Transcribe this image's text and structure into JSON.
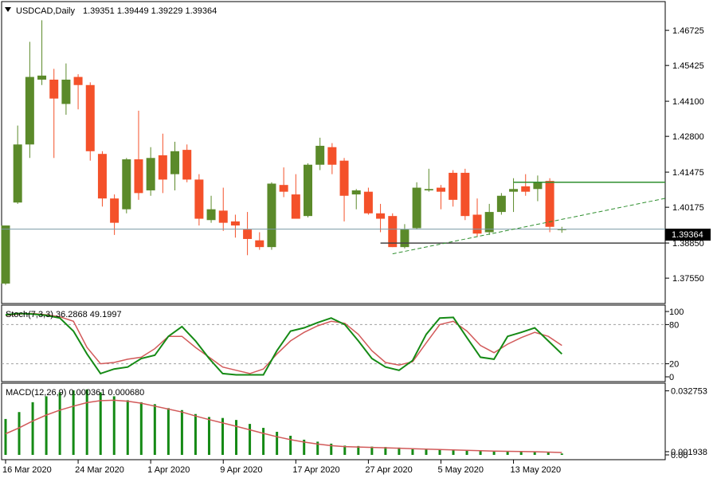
{
  "chart_data": {
    "type": "candlestick",
    "symbol_header": "USDCAD,Daily",
    "ohlc_header": "1.39351 1.39449 1.39229 1.39364",
    "current_price_label": "1.39364",
    "colors": {
      "bull": "#5b8a2a",
      "bear": "#f4512a",
      "stoch_main": "#158a15",
      "stoch_signal": "#d25a5a",
      "macd_hist": "#158a15",
      "macd_signal": "#d25a5a",
      "trendline": "#2f8f2f"
    },
    "price_axis": {
      "ylim": [
        1.3661,
        1.4779
      ],
      "ticks": [
        "1.46725",
        "1.45425",
        "1.44100",
        "1.42800",
        "1.41475",
        "1.40175",
        "1.38850",
        "1.37550"
      ]
    },
    "x_ticks": [
      {
        "i": 0,
        "label": "16 Mar 2020"
      },
      {
        "i": 6,
        "label": "24 Mar 2020"
      },
      {
        "i": 12,
        "label": "1 Apr 2020"
      },
      {
        "i": 18,
        "label": "9 Apr 2020"
      },
      {
        "i": 24,
        "label": "17 Apr 2020"
      },
      {
        "i": 30,
        "label": "27 Apr 2020"
      },
      {
        "i": 36,
        "label": "5 May 2020"
      },
      {
        "i": 42,
        "label": "13 May 2020"
      }
    ],
    "candles": [
      {
        "o": 1.3735,
        "h": 1.395,
        "l": 1.373,
        "c": 1.395
      },
      {
        "o": 1.4035,
        "h": 1.432,
        "l": 1.403,
        "c": 1.425
      },
      {
        "o": 1.425,
        "h": 1.463,
        "l": 1.42,
        "c": 1.45
      },
      {
        "o": 1.449,
        "h": 1.471,
        "l": 1.447,
        "c": 1.4505
      },
      {
        "o": 1.449,
        "h": 1.453,
        "l": 1.42,
        "c": 1.442
      },
      {
        "o": 1.44,
        "h": 1.455,
        "l": 1.436,
        "c": 1.449
      },
      {
        "o": 1.45,
        "h": 1.451,
        "l": 1.438,
        "c": 1.447
      },
      {
        "o": 1.447,
        "h": 1.448,
        "l": 1.419,
        "c": 1.4225
      },
      {
        "o": 1.4215,
        "h": 1.4225,
        "l": 1.402,
        "c": 1.405
      },
      {
        "o": 1.405,
        "h": 1.4065,
        "l": 1.3915,
        "c": 1.396
      },
      {
        "o": 1.401,
        "h": 1.42,
        "l": 1.3995,
        "c": 1.4195
      },
      {
        "o": 1.4195,
        "h": 1.4375,
        "l": 1.4045,
        "c": 1.407
      },
      {
        "o": 1.408,
        "h": 1.424,
        "l": 1.406,
        "c": 1.42
      },
      {
        "o": 1.421,
        "h": 1.429,
        "l": 1.407,
        "c": 1.412
      },
      {
        "o": 1.414,
        "h": 1.426,
        "l": 1.408,
        "c": 1.4225
      },
      {
        "o": 1.423,
        "h": 1.425,
        "l": 1.411,
        "c": 1.412
      },
      {
        "o": 1.412,
        "h": 1.414,
        "l": 1.395,
        "c": 1.3975
      },
      {
        "o": 1.397,
        "h": 1.406,
        "l": 1.396,
        "c": 1.401
      },
      {
        "o": 1.4005,
        "h": 1.409,
        "l": 1.393,
        "c": 1.396
      },
      {
        "o": 1.3965,
        "h": 1.399,
        "l": 1.3905,
        "c": 1.395
      },
      {
        "o": 1.3935,
        "h": 1.4,
        "l": 1.384,
        "c": 1.39
      },
      {
        "o": 1.3895,
        "h": 1.3925,
        "l": 1.386,
        "c": 1.387
      },
      {
        "o": 1.387,
        "h": 1.411,
        "l": 1.386,
        "c": 1.4105
      },
      {
        "o": 1.41,
        "h": 1.4165,
        "l": 1.4055,
        "c": 1.4075
      },
      {
        "o": 1.4065,
        "h": 1.414,
        "l": 1.398,
        "c": 1.3975
      },
      {
        "o": 1.3985,
        "h": 1.418,
        "l": 1.398,
        "c": 1.4175
      },
      {
        "o": 1.4175,
        "h": 1.4275,
        "l": 1.4155,
        "c": 1.4245
      },
      {
        "o": 1.424,
        "h": 1.4255,
        "l": 1.414,
        "c": 1.4175
      },
      {
        "o": 1.419,
        "h": 1.42,
        "l": 1.3965,
        "c": 1.406
      },
      {
        "o": 1.4065,
        "h": 1.4085,
        "l": 1.401,
        "c": 1.408
      },
      {
        "o": 1.4075,
        "h": 1.409,
        "l": 1.399,
        "c": 1.3995
      },
      {
        "o": 1.3995,
        "h": 1.403,
        "l": 1.3925,
        "c": 1.3975
      },
      {
        "o": 1.3985,
        "h": 1.3995,
        "l": 1.387,
        "c": 1.387
      },
      {
        "o": 1.387,
        "h": 1.3955,
        "l": 1.3865,
        "c": 1.3935
      },
      {
        "o": 1.394,
        "h": 1.411,
        "l": 1.3935,
        "c": 1.409
      },
      {
        "o": 1.408,
        "h": 1.416,
        "l": 1.4075,
        "c": 1.4085
      },
      {
        "o": 1.409,
        "h": 1.41,
        "l": 1.401,
        "c": 1.4075
      },
      {
        "o": 1.4145,
        "h": 1.4155,
        "l": 1.402,
        "c": 1.4045
      },
      {
        "o": 1.4145,
        "h": 1.416,
        "l": 1.397,
        "c": 1.3985
      },
      {
        "o": 1.399,
        "h": 1.405,
        "l": 1.391,
        "c": 1.392
      },
      {
        "o": 1.3925,
        "h": 1.403,
        "l": 1.3915,
        "c": 1.4
      },
      {
        "o": 1.4,
        "h": 1.407,
        "l": 1.399,
        "c": 1.406
      },
      {
        "o": 1.4075,
        "h": 1.4125,
        "l": 1.4,
        "c": 1.4085
      },
      {
        "o": 1.4095,
        "h": 1.414,
        "l": 1.406,
        "c": 1.4075
      },
      {
        "o": 1.4085,
        "h": 1.4135,
        "l": 1.404,
        "c": 1.411
      },
      {
        "o": 1.4115,
        "h": 1.4125,
        "l": 1.3925,
        "c": 1.3945
      },
      {
        "o": 1.3935,
        "h": 1.3945,
        "l": 1.3923,
        "c": 1.3936
      }
    ],
    "lines": {
      "resistance": {
        "i1": 42,
        "i2": 49,
        "price": 1.411
      },
      "support": {
        "i1": 31,
        "i2": 49,
        "price": 1.3885
      },
      "trend_from": {
        "i": 32,
        "price": 1.3845
      },
      "trend_to": {
        "i": 49,
        "price": 1.4
      },
      "current": 1.39364
    },
    "stochastic": {
      "label": "Stoch(7,3,3) 36.2868 49.1997",
      "ylim": [
        0,
        100
      ],
      "ticks": [
        "100",
        "80",
        "20",
        "0"
      ],
      "levels": [
        80,
        20
      ],
      "main": [
        95,
        97,
        96,
        94,
        90,
        70,
        35,
        5,
        12,
        15,
        28,
        33,
        62,
        77,
        55,
        28,
        5,
        3,
        3,
        3,
        40,
        70,
        75,
        83,
        90,
        80,
        55,
        28,
        15,
        10,
        25,
        65,
        90,
        91,
        60,
        30,
        27,
        62,
        68,
        75,
        55,
        35
      ],
      "signal": [
        94,
        96,
        97,
        95,
        92,
        85,
        45,
        20,
        22,
        27,
        30,
        43,
        62,
        62,
        45,
        30,
        15,
        10,
        5,
        12,
        35,
        55,
        68,
        78,
        85,
        82,
        65,
        40,
        22,
        18,
        23,
        52,
        80,
        85,
        70,
        48,
        37,
        50,
        60,
        68,
        62,
        48
      ]
    },
    "macd": {
      "label": "MACD(12,26,9) 0.000361 0.000680",
      "ylim": [
        0.0003,
        0.0334
      ],
      "ticks": [
        "0.032753",
        "0.001938",
        "0.00"
      ],
      "hist": [
        0.0185,
        0.022,
        0.027,
        0.03,
        0.032,
        0.033,
        0.0335,
        0.032,
        0.03,
        0.028,
        0.027,
        0.026,
        0.024,
        0.023,
        0.021,
        0.0195,
        0.019,
        0.018,
        0.016,
        0.014,
        0.012,
        0.01,
        0.008,
        0.007,
        0.006,
        0.005,
        0.0048,
        0.0045,
        0.0043,
        0.004,
        0.0037,
        0.0035,
        0.0032,
        0.003,
        0.0028,
        0.0026,
        0.0024,
        0.0022,
        0.002,
        0.0018,
        0.0015,
        0.001
      ],
      "signal": [
        0.011,
        0.014,
        0.0175,
        0.0205,
        0.023,
        0.025,
        0.0268,
        0.0278,
        0.028,
        0.0275,
        0.0265,
        0.025,
        0.0235,
        0.022,
        0.02,
        0.0182,
        0.0165,
        0.0148,
        0.013,
        0.0112,
        0.0095,
        0.008,
        0.0068,
        0.0058,
        0.005,
        0.0045,
        0.0043,
        0.0041,
        0.0039,
        0.0037,
        0.0034,
        0.0032,
        0.003,
        0.0028,
        0.0026,
        0.0024,
        0.0022,
        0.0021,
        0.002,
        0.0019,
        0.0017,
        0.0015
      ]
    }
  }
}
